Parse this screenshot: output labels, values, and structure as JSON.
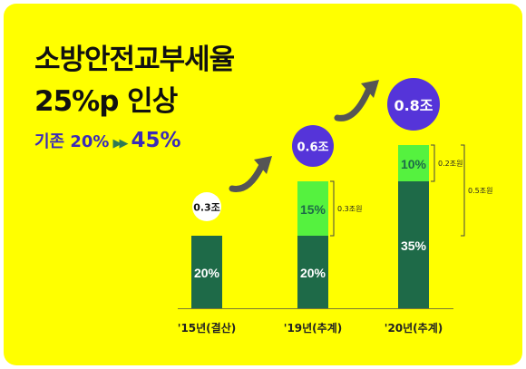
{
  "title_line1": "소방안전교부세율",
  "title_line2": "25%p 인상",
  "subtitle": {
    "prefix": "기존 20%",
    "arrows": "▶▶",
    "highlight": "45%"
  },
  "colors": {
    "background": "#ffff00",
    "base_bar": "#1e6a48",
    "increase_bar": "#55f23f",
    "total_bubble_purple": "#5534d9",
    "first_bubble": "#ffffff",
    "arrow": "#555555"
  },
  "chart_data": {
    "type": "bar",
    "stacked": true,
    "categories": [
      "'15년(결산)",
      "'19년(추계)",
      "'20년(추계)"
    ],
    "series": [
      {
        "values": [
          20,
          20,
          35
        ],
        "labels": [
          "20%",
          "20%",
          "35%"
        ]
      },
      {
        "values": [
          0,
          15,
          10
        ],
        "labels": [
          "",
          "15%",
          "10%"
        ]
      }
    ],
    "totals": [
      "0.3조",
      "0.6조",
      "0.8조"
    ],
    "bracket_annotations": [
      {
        "category": 1,
        "text": "0.3조원"
      },
      {
        "category": 2,
        "text": "0.2조원"
      },
      {
        "category": 2,
        "text": "0.5조원"
      }
    ],
    "ylim": [
      0,
      45
    ]
  }
}
